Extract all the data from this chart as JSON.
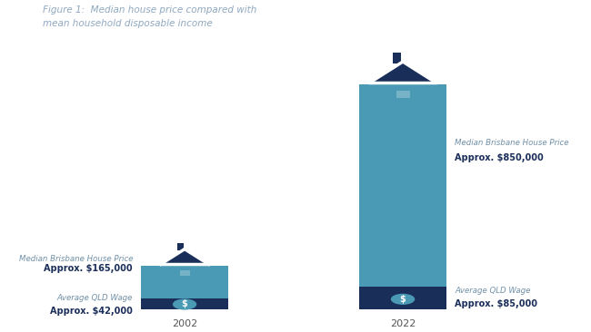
{
  "years": [
    "2002",
    "2022"
  ],
  "house_prices": [
    165000,
    850000
  ],
  "wages": [
    42000,
    85000
  ],
  "bar_color_house": "#4a9ab5",
  "bar_color_wage": "#1a2e5a",
  "title": "Figure 1:  Median house price compared with\nmean household disposable income",
  "title_color": "#8fa8c0",
  "label_color_title": "#7090a8",
  "label_color_value": "#1a2e5a",
  "year_label_color": "#555555",
  "max_scale": 950000,
  "label_2002_house_title": "Median Brisbane House Price",
  "label_2002_house_value": "Approx. $165,000",
  "label_2002_wage_title": "Average QLD Wage",
  "label_2002_wage_value": "Approx. $42,000",
  "label_2022_house_title": "Median Brisbane House Price",
  "label_2022_house_value": "Approx. $850,000",
  "label_2022_wage_title": "Average QLD Wage",
  "label_2022_wage_value": "Approx. $85,000",
  "background_color": "#ffffff"
}
